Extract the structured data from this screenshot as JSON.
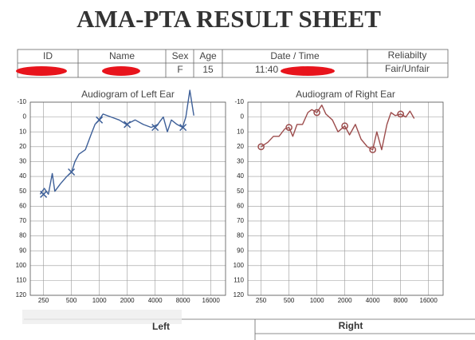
{
  "header": {
    "title": "AMA-PTA RESULT SHEET"
  },
  "table": {
    "headers": [
      "ID",
      "Name",
      "Sex",
      "Age",
      "Date / Time",
      "Reliabilty"
    ],
    "row": [
      "F",
      "15",
      "11:40",
      "Fair/Unfair"
    ]
  },
  "footer": {
    "left": "Left",
    "right": "Right"
  },
  "chart_data": [
    {
      "type": "line",
      "title": "Audiogram of Left Ear",
      "x_scale": "log",
      "y_inverted": true,
      "grid": true,
      "xlim": [
        180,
        23000
      ],
      "xticks": [
        250,
        500,
        1000,
        2000,
        4000,
        8000,
        16000
      ],
      "ylim": [
        -10,
        120
      ],
      "yticks": [
        -10,
        0,
        10,
        20,
        30,
        40,
        50,
        60,
        70,
        80,
        90,
        100,
        110,
        120
      ],
      "series": [
        {
          "color": "#3d5f98",
          "line": true,
          "marker": null,
          "x": [
            230,
            255,
            282,
            311,
            331,
            380,
            446,
            503,
            545,
            602,
            707,
            812,
            898,
            992,
            1097,
            1339,
            1635,
            1956,
            2437,
            2976,
            3634,
            4264,
            4904,
            5418,
            5987,
            6886,
            7918,
            8583,
            9478,
            10470
          ],
          "values": [
            52,
            48,
            52,
            38,
            50,
            45,
            40,
            37,
            30,
            25,
            22,
            12,
            5,
            2,
            -2,
            0,
            2,
            5,
            2,
            5,
            7,
            5,
            0,
            10,
            2,
            5,
            7,
            0,
            -18,
            -1
          ]
        },
        {
          "color": "#3d5f98",
          "line": false,
          "marker": "x",
          "x": [
            250,
            500,
            1000,
            2000,
            4000,
            8000
          ],
          "values": [
            52,
            37,
            2,
            5,
            7,
            7
          ]
        }
      ]
    },
    {
      "type": "line",
      "title": "Audiogram of Right Ear",
      "x_scale": "log",
      "y_inverted": true,
      "grid": true,
      "xlim": [
        180,
        23000
      ],
      "xticks": [
        250,
        500,
        1000,
        2000,
        4000,
        8000,
        16000
      ],
      "ylim": [
        -10,
        120
      ],
      "yticks": [
        -10,
        0,
        10,
        20,
        30,
        40,
        50,
        60,
        70,
        80,
        90,
        100,
        110,
        120
      ],
      "series": [
        {
          "color": "#9c4c4c",
          "line": true,
          "marker": null,
          "x": [
            250,
            295,
            340,
            390,
            450,
            500,
            550,
            610,
            700,
            800,
            880,
            1000,
            1130,
            1250,
            1470,
            1690,
            2000,
            2250,
            2600,
            3000,
            3500,
            4000,
            4430,
            5000,
            5700,
            6300,
            7000,
            8000,
            9100,
            10100,
            11200
          ],
          "values": [
            20,
            17,
            13,
            13,
            8,
            7,
            13,
            5,
            5,
            -3,
            -5,
            -3,
            -8,
            -2,
            2,
            10,
            6,
            12,
            5,
            15,
            20,
            22,
            10,
            22,
            5,
            -3,
            -1,
            -2,
            0,
            -4,
            1
          ]
        },
        {
          "color": "#9c4c4c",
          "line": false,
          "marker": "o",
          "x": [
            250,
            500,
            1000,
            2000,
            4000,
            8000
          ],
          "values": [
            20,
            7,
            -3,
            6,
            22,
            -2
          ]
        }
      ]
    }
  ]
}
